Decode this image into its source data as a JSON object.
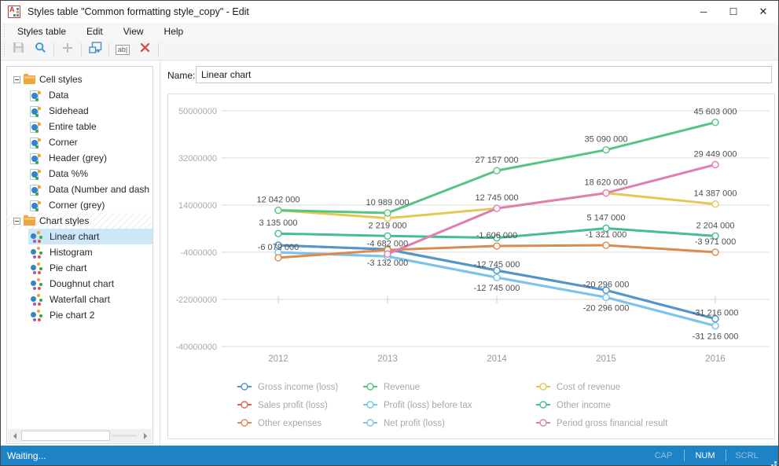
{
  "window": {
    "title": "Styles table \"Common formatting style_copy\" - Edit",
    "controls": {
      "minimize": "─",
      "maximize": "☐",
      "close": "✕"
    }
  },
  "menu": {
    "items": [
      "Styles table",
      "Edit",
      "View",
      "Help"
    ]
  },
  "toolbar": {
    "icons": [
      "save-icon",
      "search-icon",
      "add-icon",
      "duplicate-icon",
      "rename-icon",
      "delete-icon"
    ],
    "rename_glyph": "ab|"
  },
  "sidebar": {
    "groups": [
      {
        "label": "Cell styles",
        "icon": "cell-style-icon",
        "hatched": false,
        "items": [
          {
            "label": "Data",
            "selected": false
          },
          {
            "label": "Sidehead",
            "selected": false
          },
          {
            "label": "Entire table",
            "selected": false
          },
          {
            "label": "Corner",
            "selected": false
          },
          {
            "label": "Header (grey)",
            "selected": false
          },
          {
            "label": "Data %%",
            "selected": false
          },
          {
            "label": "Data (Number and dash",
            "selected": false
          },
          {
            "label": "Corner (grey)",
            "selected": false
          }
        ]
      },
      {
        "label": "Chart styles",
        "icon": "chart-style-icon",
        "hatched": true,
        "items": [
          {
            "label": "Linear chart",
            "selected": true
          },
          {
            "label": "Histogram",
            "selected": false
          },
          {
            "label": "Pie chart",
            "selected": false
          },
          {
            "label": "Doughnut chart",
            "selected": false
          },
          {
            "label": "Waterfall chart",
            "selected": false
          },
          {
            "label": "Pie chart 2",
            "selected": false
          }
        ]
      }
    ]
  },
  "main": {
    "name_label": "Name:",
    "name_value": "Linear chart"
  },
  "chart_data": {
    "type": "line",
    "categories": [
      "2012",
      "2013",
      "2014",
      "2015",
      "2016"
    ],
    "ylim": [
      -40000000,
      50000000
    ],
    "ytick_labels": [
      "50000000",
      "32000000",
      "14000000",
      "-4000000",
      "-22000000",
      "-40000000"
    ],
    "grid": true,
    "legend_position": "bottom",
    "series": [
      {
        "name": "Gross income (loss)",
        "color": "#4f97cf",
        "values": [
          -3132000,
          -4682000,
          -12745000,
          -20296000,
          -31216000
        ]
      },
      {
        "name": "Revenue",
        "color": "#57c482",
        "values": [
          12042000,
          10989000,
          27157000,
          35090000,
          45603000
        ]
      },
      {
        "name": "Cost of revenue",
        "color": "#e5c854",
        "values": [
          12042000,
          9000000,
          12745000,
          18620000,
          14387000
        ]
      },
      {
        "name": "Sales profit (loss)",
        "color": "#e06258",
        "values": [
          -3132000,
          -4682000,
          -12745000,
          -20296000,
          -31216000
        ]
      },
      {
        "name": "Profit (loss) before tax",
        "color": "#72c7e7",
        "values": [
          -3132000,
          -4682000,
          -12745000,
          -20296000,
          -31216000
        ]
      },
      {
        "name": "Other income",
        "color": "#45bd8f",
        "values": [
          3135000,
          2219000,
          1500000,
          5147000,
          2204000
        ]
      },
      {
        "name": "Other expenses",
        "color": "#dd8a4e",
        "values": [
          -6079000,
          -3132000,
          -1606000,
          -1321000,
          -3971000
        ]
      },
      {
        "name": "Net profit (loss)",
        "color": "#7cc4ea",
        "values": [
          -3132000,
          -4682000,
          -12745000,
          -20296000,
          -31216000
        ]
      },
      {
        "name": "Period gross financial result",
        "color": "#df7fb1",
        "values": [
          null,
          -4682000,
          12745000,
          18620000,
          29449000
        ]
      }
    ],
    "point_labels": [
      {
        "x": 0,
        "value": 12042000,
        "text": "12 042 000",
        "side": "above"
      },
      {
        "x": 0,
        "value": 3135000,
        "text": "3 135 000",
        "side": "above"
      },
      {
        "x": 0,
        "value": -6079000,
        "text": "-6 079 000",
        "side": "above"
      },
      {
        "x": 1,
        "value": 10989000,
        "text": "10 989 000",
        "side": "above"
      },
      {
        "x": 1,
        "value": 2219000,
        "text": "2 219 000",
        "side": "above"
      },
      {
        "x": 1,
        "value": -4682000,
        "text": "-4 682 000",
        "side": "above"
      },
      {
        "x": 1,
        "value": -3132000,
        "text": "-3 132 000",
        "side": "below"
      },
      {
        "x": 2,
        "value": 27157000,
        "text": "27 157 000",
        "side": "above"
      },
      {
        "x": 2,
        "value": 12745000,
        "text": "12 745 000",
        "side": "above"
      },
      {
        "x": 2,
        "value": -1606000,
        "text": "-1 606 000",
        "side": "above"
      },
      {
        "x": 2,
        "value": -12745000,
        "text": "-12 745 000",
        "side": "above"
      },
      {
        "x": 2,
        "value": -12745000,
        "text": "-12 745 000",
        "side": "below"
      },
      {
        "x": 3,
        "value": 35090000,
        "text": "35 090 000",
        "side": "above"
      },
      {
        "x": 3,
        "value": 18620000,
        "text": "18 620 000",
        "side": "above"
      },
      {
        "x": 3,
        "value": 5147000,
        "text": "5 147 000",
        "side": "above"
      },
      {
        "x": 3,
        "value": -1321000,
        "text": "-1 321 000",
        "side": "above"
      },
      {
        "x": 3,
        "value": -20296000,
        "text": "-20 296 000",
        "side": "above"
      },
      {
        "x": 3,
        "value": -20296000,
        "text": "-20 296 000",
        "side": "below"
      },
      {
        "x": 4,
        "value": 45603000,
        "text": "45 603 000",
        "side": "above"
      },
      {
        "x": 4,
        "value": 29449000,
        "text": "29 449 000",
        "side": "above"
      },
      {
        "x": 4,
        "value": 14387000,
        "text": "14 387 000",
        "side": "above"
      },
      {
        "x": 4,
        "value": 2204000,
        "text": "2 204 000",
        "side": "above"
      },
      {
        "x": 4,
        "value": -3971000,
        "text": "-3 971 000",
        "side": "above"
      },
      {
        "x": 4,
        "value": -31216000,
        "text": "-31 216 000",
        "side": "above"
      },
      {
        "x": 4,
        "value": -31216000,
        "text": "-31 216 000",
        "side": "below"
      }
    ]
  },
  "statusbar": {
    "status": "Waiting...",
    "indicators": [
      {
        "label": "CAP",
        "active": false
      },
      {
        "label": "NUM",
        "active": true
      },
      {
        "label": "SCRL",
        "active": false
      }
    ]
  }
}
